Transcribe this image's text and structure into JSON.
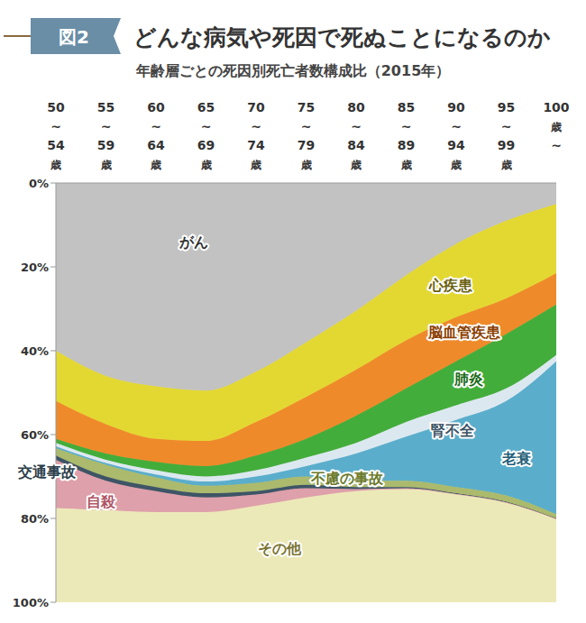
{
  "chart_data": {
    "type": "area",
    "figure_label": "図2",
    "title": "どんな病気や死因で死ぬことになるのか",
    "subtitle": "年齢層ごとの死因別死亡者数構成比（2015年）",
    "stacked": true,
    "grid": false,
    "categories": [
      "50~54歳",
      "55~59歳",
      "60~64歳",
      "65~69歳",
      "70~74歳",
      "75~79歳",
      "80~84歳",
      "85~89歳",
      "90~94歳",
      "95~99歳",
      "100歳~"
    ],
    "series": [
      {
        "name": "がん",
        "color": "#c2c2c2",
        "values": [
          40,
          46,
          48.5,
          49.5,
          45,
          38,
          30.5,
          22,
          14.5,
          9,
          5
        ]
      },
      {
        "name": "心疾患",
        "color": "#e3d832",
        "values": [
          12,
          11.5,
          12.5,
          12,
          12,
          13,
          14,
          15.5,
          17.5,
          18.5,
          16.5
        ]
      },
      {
        "name": "脳血管疾患",
        "color": "#ef8a2a",
        "values": [
          9,
          7,
          5.5,
          6,
          8,
          10,
          11,
          11.5,
          10.5,
          8.5,
          7.5
        ]
      },
      {
        "name": "肺炎",
        "color": "#43ad3b",
        "values": [
          1,
          1.5,
          2,
          2.5,
          3.5,
          4.5,
          6.5,
          8,
          10.5,
          13,
          12
        ]
      },
      {
        "name": "腎不全",
        "color": "#dce8f0",
        "values": [
          0.8,
          0.8,
          1,
          1.2,
          1.5,
          2,
          2.5,
          3.5,
          3.5,
          3,
          1.5
        ]
      },
      {
        "name": "老衰",
        "color": "#5aaecb",
        "values": [
          0.4,
          0.4,
          0.7,
          1,
          1.5,
          2.5,
          6.5,
          10.5,
          16,
          22.5,
          36.5
        ]
      },
      {
        "name": "不慮の事故",
        "color": "#abba6c",
        "values": [
          1.8,
          2.8,
          2.3,
          1.8,
          2,
          2,
          1.5,
          1.5,
          1.5,
          1.5,
          1
        ]
      },
      {
        "name": "交通事故",
        "color": "#3e5566",
        "values": [
          1,
          1,
          1,
          1,
          0.8,
          0.8,
          0.5,
          0.3,
          0.2,
          0.2,
          0.1
        ]
      },
      {
        "name": "自殺",
        "color": "#dea0aa",
        "values": [
          11.5,
          7,
          5,
          3.5,
          2.7,
          2.2,
          0.5,
          0.2,
          0.1,
          0.1,
          0.1
        ]
      },
      {
        "name": "その他",
        "color": "#ece9b8",
        "values": [
          22.5,
          22,
          21.5,
          21.5,
          23,
          25,
          26.5,
          27,
          25.7,
          23.7,
          19.8
        ]
      }
    ],
    "ylim": [
      0,
      100
    ],
    "yticks": [
      {
        "value": 0,
        "label": "0%"
      },
      {
        "value": 20,
        "label": "20%"
      },
      {
        "value": 40,
        "label": "40%"
      },
      {
        "value": 60,
        "label": "60%"
      },
      {
        "value": 80,
        "label": "80%"
      },
      {
        "value": 100,
        "label": "100%"
      }
    ]
  }
}
